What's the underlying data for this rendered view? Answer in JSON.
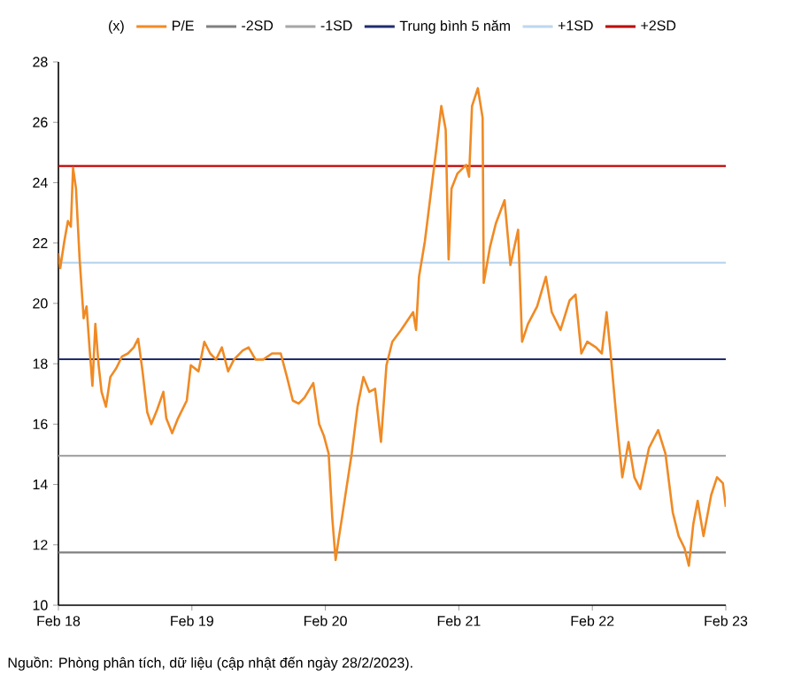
{
  "chart_data": {
    "type": "line",
    "legend_title": "(x)",
    "legend": "top",
    "grid": false,
    "marker": "none",
    "line_style": "solid",
    "xlim": [
      "2018-02-28",
      "2023-02-28"
    ],
    "xticks": [
      {
        "value": "2018-02-28",
        "label": "Feb 18"
      },
      {
        "value": "2019-02-28",
        "label": "Feb 19"
      },
      {
        "value": "2020-02-28",
        "label": "Feb 20"
      },
      {
        "value": "2021-02-28",
        "label": "Feb 21"
      },
      {
        "value": "2022-02-28",
        "label": "Feb 22"
      },
      {
        "value": "2023-02-28",
        "label": "Feb 23"
      }
    ],
    "ylim": [
      10,
      28
    ],
    "yticks": [
      10,
      12,
      14,
      16,
      18,
      20,
      22,
      24,
      26,
      28
    ],
    "annotations": [
      "Nguồn: Phòng phân tích, dữ liệu (cập nhật đến ngày 28/2/2023)."
    ],
    "series": [
      {
        "name": "P/E",
        "color": "#f08a24",
        "x": [
          "2018-02-28",
          "2018-03-05",
          "2018-03-16",
          "2018-03-26",
          "2018-04-03",
          "2018-04-09",
          "2018-04-17",
          "2018-04-27",
          "2018-05-08",
          "2018-05-16",
          "2018-05-24",
          "2018-06-01",
          "2018-06-09",
          "2018-06-18",
          "2018-06-26",
          "2018-07-08",
          "2018-07-20",
          "2018-08-05",
          "2018-08-21",
          "2018-09-06",
          "2018-09-22",
          "2018-10-04",
          "2018-10-16",
          "2018-10-29",
          "2018-11-09",
          "2018-11-25",
          "2018-12-12",
          "2018-12-20",
          "2019-01-05",
          "2019-01-21",
          "2019-02-14",
          "2019-02-25",
          "2019-03-18",
          "2019-04-03",
          "2019-04-19",
          "2019-05-05",
          "2019-05-21",
          "2019-06-07",
          "2019-06-23",
          "2019-07-17",
          "2019-08-02",
          "2019-08-21",
          "2019-09-11",
          "2019-10-05",
          "2019-10-29",
          "2019-11-15",
          "2019-12-01",
          "2019-12-17",
          "2020-01-02",
          "2020-01-26",
          "2020-02-11",
          "2020-02-24",
          "2020-03-09",
          "2020-03-19",
          "2020-03-28",
          "2020-04-04",
          "2020-04-14",
          "2020-04-25",
          "2020-05-11",
          "2020-05-27",
          "2020-06-12",
          "2020-06-28",
          "2020-07-14",
          "2020-07-30",
          "2020-08-14",
          "2020-08-30",
          "2020-09-23",
          "2020-10-26",
          "2020-11-03",
          "2020-11-11",
          "2020-11-27",
          "2020-12-13",
          "2020-12-29",
          "2021-01-11",
          "2021-01-23",
          "2021-01-31",
          "2021-02-08",
          "2021-02-24",
          "2021-03-20",
          "2021-03-28",
          "2021-04-05",
          "2021-04-21",
          "2021-05-04",
          "2021-05-07",
          "2021-05-24",
          "2021-06-09",
          "2021-07-03",
          "2021-07-19",
          "2021-08-09",
          "2021-08-20",
          "2021-09-05",
          "2021-09-30",
          "2021-10-24",
          "2021-11-09",
          "2021-12-03",
          "2021-12-28",
          "2022-01-13",
          "2022-01-29",
          "2022-02-14",
          "2022-03-10",
          "2022-03-26",
          "2022-04-08",
          "2022-04-19",
          "2022-05-05",
          "2022-05-21",
          "2022-06-07",
          "2022-06-23",
          "2022-07-09",
          "2022-08-02",
          "2022-08-27",
          "2022-09-16",
          "2022-10-06",
          "2022-10-22",
          "2022-11-07",
          "2022-11-19",
          "2022-12-01",
          "2022-12-13",
          "2022-12-29",
          "2023-01-19",
          "2023-02-04",
          "2023-02-20",
          "2023-02-28"
        ],
        "values": [
          21.66,
          21.17,
          22.05,
          22.73,
          22.54,
          24.49,
          23.81,
          21.46,
          19.51,
          19.9,
          18.54,
          17.27,
          19.32,
          17.95,
          17.07,
          16.58,
          17.56,
          17.85,
          18.24,
          18.34,
          18.54,
          18.83,
          17.75,
          16.39,
          16.0,
          16.48,
          17.07,
          16.19,
          15.7,
          16.19,
          16.78,
          17.95,
          17.75,
          18.73,
          18.34,
          18.14,
          18.54,
          17.75,
          18.14,
          18.44,
          18.54,
          18.14,
          18.14,
          18.34,
          18.34,
          17.56,
          16.78,
          16.68,
          16.88,
          17.36,
          16.0,
          15.61,
          15.02,
          12.87,
          11.5,
          12.09,
          12.87,
          13.75,
          15.02,
          16.58,
          17.56,
          17.07,
          17.17,
          15.41,
          17.95,
          18.73,
          19.12,
          19.71,
          19.12,
          20.88,
          22.05,
          23.61,
          25.18,
          26.54,
          25.76,
          21.46,
          23.81,
          24.3,
          24.59,
          24.2,
          26.54,
          27.13,
          26.15,
          20.68,
          21.86,
          22.64,
          23.42,
          21.27,
          22.44,
          18.73,
          19.32,
          19.9,
          20.88,
          19.71,
          19.12,
          20.1,
          20.29,
          18.34,
          18.73,
          18.54,
          18.34,
          19.71,
          18.34,
          16.19,
          14.24,
          15.41,
          14.24,
          13.85,
          15.21,
          15.8,
          15.02,
          13.07,
          12.29,
          11.89,
          11.31,
          12.68,
          13.46,
          12.29,
          13.65,
          14.24,
          14.04,
          13.26
        ]
      },
      {
        "name": "-2SD",
        "color": "#808080",
        "x": [
          "2018-02-28",
          "2023-02-28"
        ],
        "values": [
          11.75,
          11.75
        ]
      },
      {
        "name": "-1SD",
        "color": "#a6a6a6",
        "x": [
          "2018-02-28",
          "2023-02-28"
        ],
        "values": [
          14.95,
          14.95
        ]
      },
      {
        "name": "Trung bình 5 năm",
        "color": "#1f2d6b",
        "x": [
          "2018-02-28",
          "2023-02-28"
        ],
        "values": [
          18.15,
          18.15
        ]
      },
      {
        "name": "+1SD",
        "color": "#bdd7ee",
        "x": [
          "2018-02-28",
          "2023-02-28"
        ],
        "values": [
          21.35,
          21.35
        ]
      },
      {
        "name": "+2SD",
        "color": "#c00000",
        "x": [
          "2018-02-28",
          "2023-02-28"
        ],
        "values": [
          24.55,
          24.55
        ]
      }
    ]
  }
}
